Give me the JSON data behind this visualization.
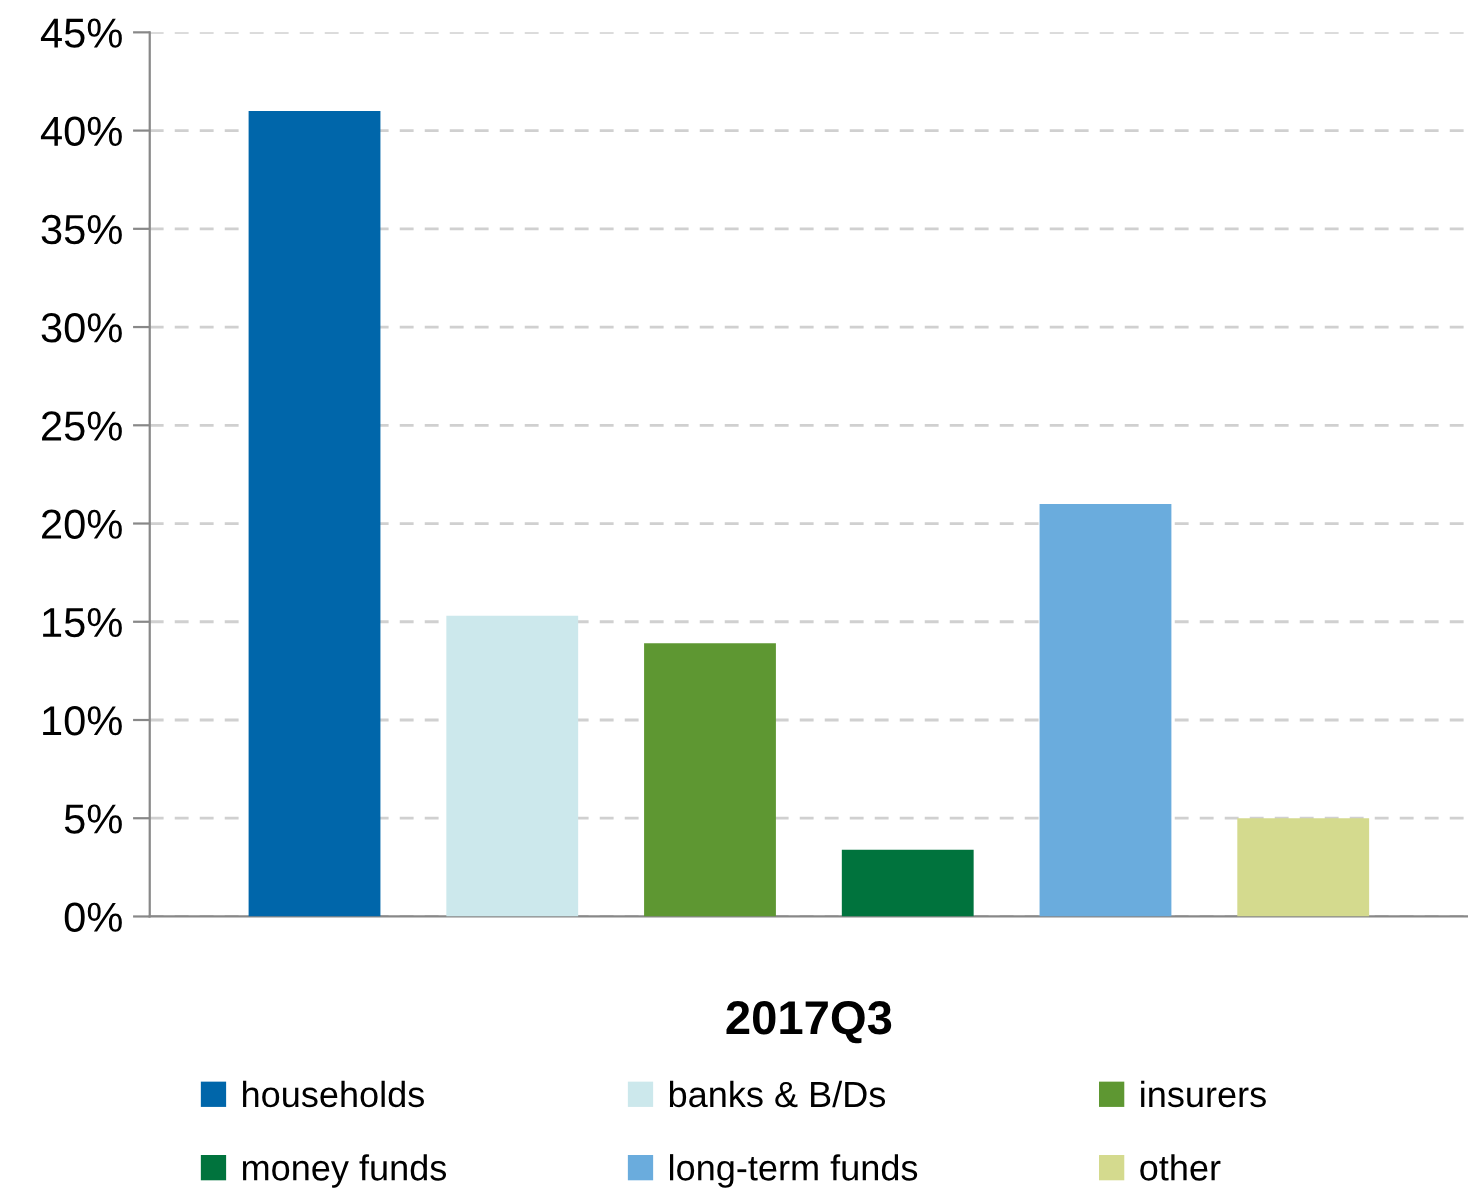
{
  "chart_data": {
    "type": "bar",
    "categories": [
      "2017Q3"
    ],
    "series": [
      {
        "name": "households",
        "color": "#0066aa",
        "values": [
          41.0
        ]
      },
      {
        "name": "banks & B/Ds",
        "color": "#cce8ec",
        "values": [
          15.3
        ]
      },
      {
        "name": "insurers",
        "color": "#5e9732",
        "values": [
          13.9
        ]
      },
      {
        "name": "money funds",
        "color": "#00733d",
        "values": [
          3.4
        ]
      },
      {
        "name": "long-term funds",
        "color": "#6aacdd",
        "values": [
          21.0
        ]
      },
      {
        "name": "other",
        "color": "#d4da8e",
        "values": [
          5.0
        ]
      }
    ],
    "ylim": [
      0,
      45
    ],
    "yticks": [
      {
        "value": 0,
        "label": "0%"
      },
      {
        "value": 5,
        "label": "5%"
      },
      {
        "value": 10,
        "label": "10%"
      },
      {
        "value": 15,
        "label": "15%"
      },
      {
        "value": 20,
        "label": "20%"
      },
      {
        "value": 25,
        "label": "25%"
      },
      {
        "value": 30,
        "label": "30%"
      },
      {
        "value": 35,
        "label": "35%"
      },
      {
        "value": 40,
        "label": "40%"
      },
      {
        "value": 45,
        "label": "45%"
      }
    ],
    "grid": "y",
    "legend": "bottom"
  }
}
